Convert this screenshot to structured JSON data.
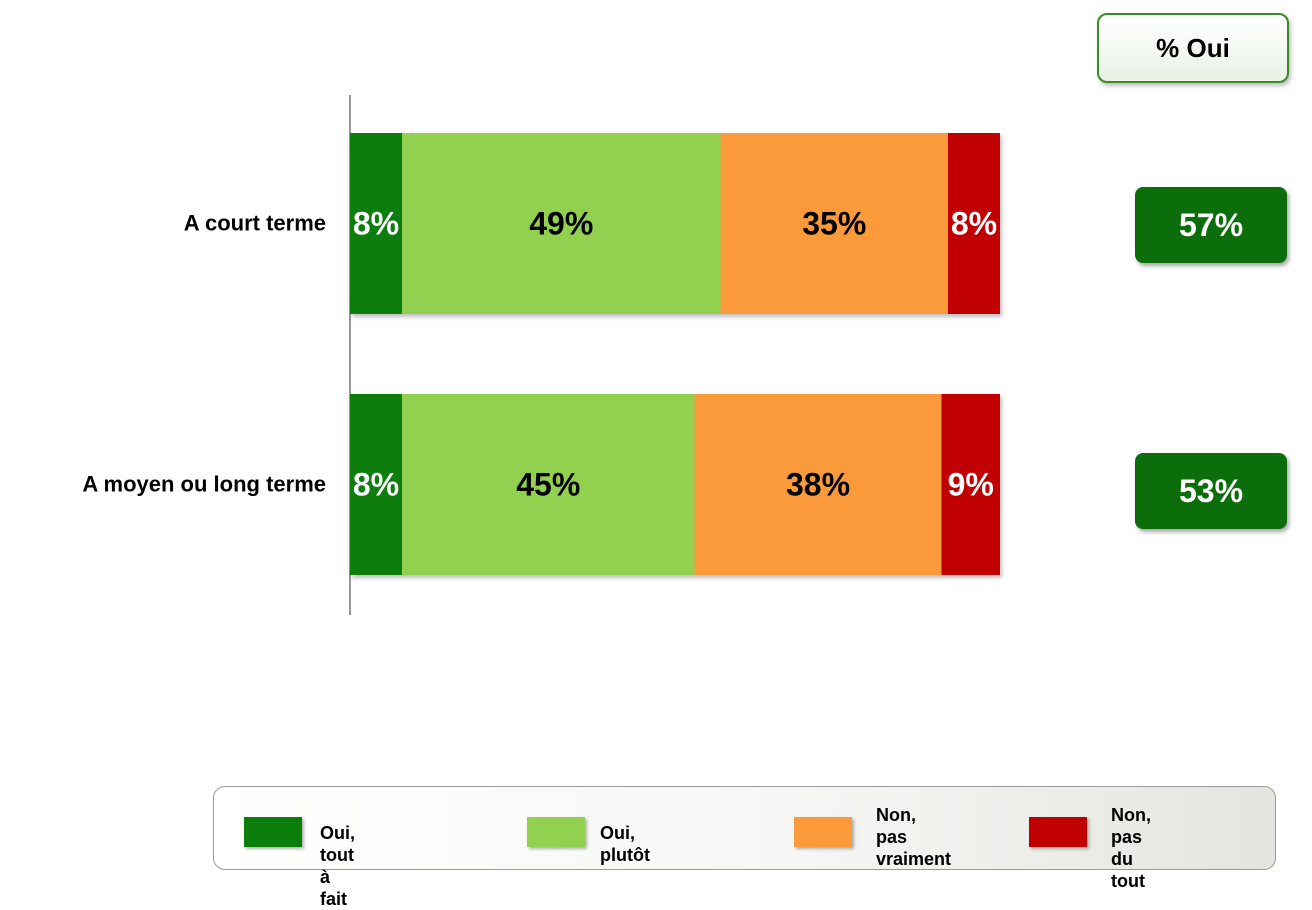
{
  "summary": {
    "header": "% Oui",
    "values": [
      "57%",
      "53%"
    ]
  },
  "legend": {
    "items": [
      {
        "label_lines": [
          "Oui, tout à fait"
        ],
        "color": "#0a7d0a"
      },
      {
        "label_lines": [
          "Oui, plutôt"
        ],
        "color": "#92d050"
      },
      {
        "label_lines": [
          "Non, pas",
          "vraiment"
        ],
        "color": "#fb9a3a"
      },
      {
        "label_lines": [
          "Non, pas",
          "du tout"
        ],
        "color": "#c00000"
      }
    ]
  },
  "chart_data": {
    "type": "bar",
    "orientation": "horizontal",
    "stacked": true,
    "categories": [
      "A court terme",
      "A moyen ou long terme"
    ],
    "series": [
      {
        "name": "Oui, tout à fait",
        "values": [
          8,
          8
        ],
        "labels": [
          "8%",
          "8%"
        ],
        "color": "#0a7d0a",
        "label_color": "#ffffff"
      },
      {
        "name": "Oui, plutôt",
        "values": [
          49,
          45
        ],
        "labels": [
          "49%",
          "45%"
        ],
        "color": "#92d050",
        "label_color": "#000000"
      },
      {
        "name": "Non, pas vraiment",
        "values": [
          35,
          38
        ],
        "labels": [
          "35%",
          "38%"
        ],
        "color": "#fb9a3a",
        "label_color": "#000000"
      },
      {
        "name": "Non, pas du tout",
        "values": [
          8,
          9
        ],
        "labels": [
          "8%",
          "9%"
        ],
        "color": "#c00000",
        "label_color": "#ffffff"
      }
    ],
    "xlim": [
      0,
      100
    ],
    "grid": false,
    "legend": "bottom"
  }
}
